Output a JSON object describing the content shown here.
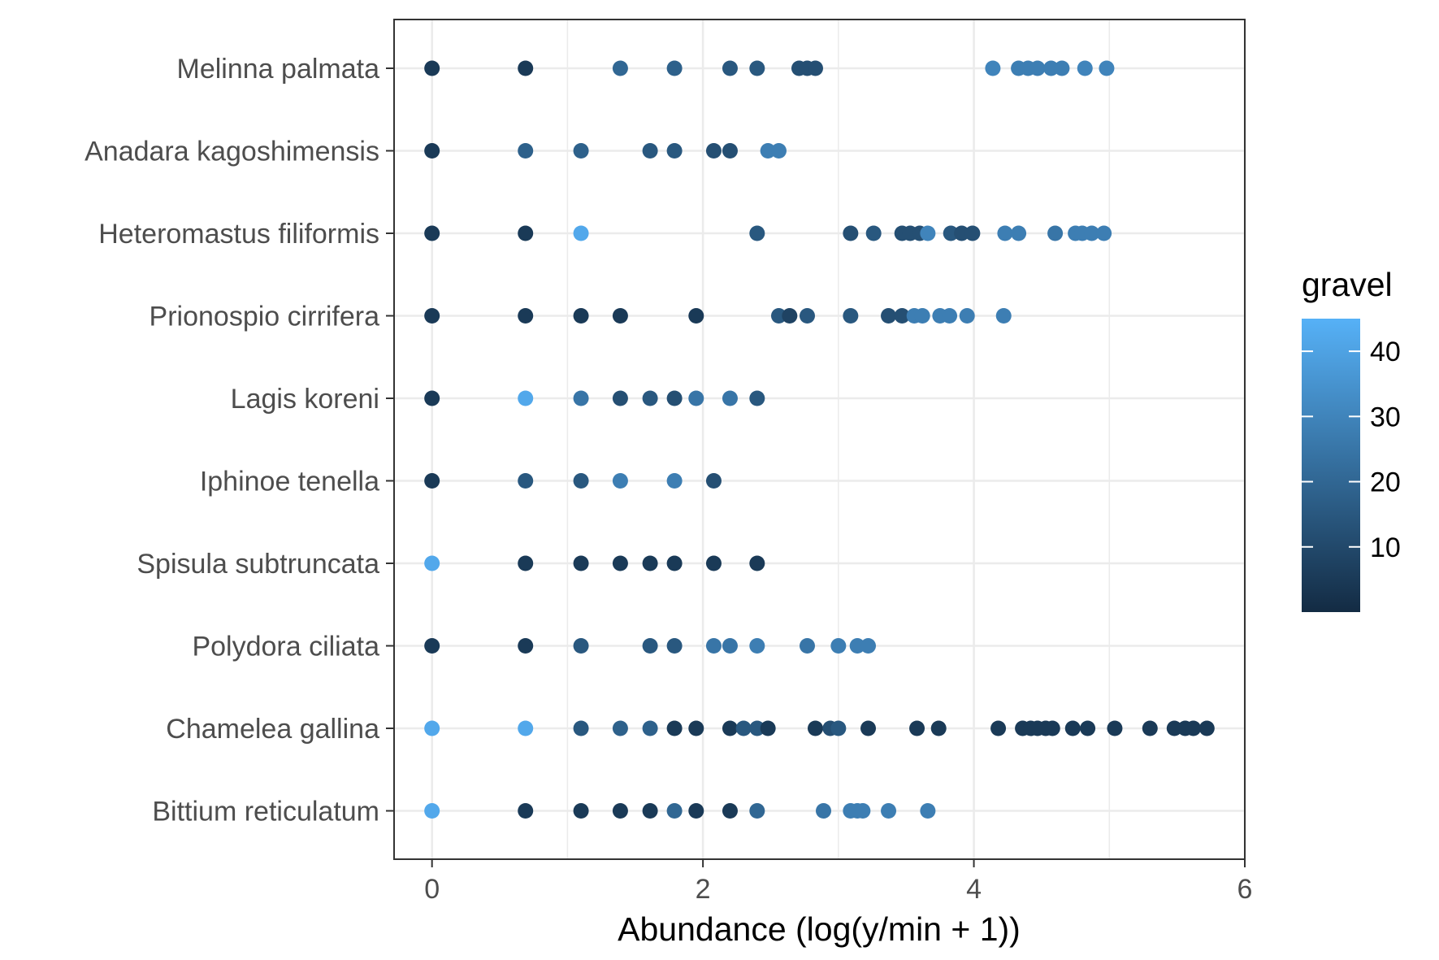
{
  "chart_data": {
    "type": "scatter",
    "title": "",
    "xlabel": "Abundance (log(y/min + 1))",
    "ylabel": "",
    "xlim": [
      -0.28,
      6
    ],
    "x_ticks": [
      "0",
      "2",
      "4",
      "6"
    ],
    "grid": true,
    "legend": {
      "title": "gravel",
      "position": "right",
      "type": "colorbar",
      "range": [
        0,
        45
      ],
      "ticks": [
        "10",
        "20",
        "30",
        "40"
      ],
      "low_color": "#132B43",
      "high_color": "#56B1F7"
    },
    "categories": [
      "Melinna palmata",
      "Anadara kagoshimensis",
      "Heteromastus filiformis",
      "Prionospio cirrifera",
      "Lagis koreni",
      "Iphinoe tenella",
      "Spisula subtruncata",
      "Polydora ciliata",
      "Chamelea gallina",
      "Bittium reticulatum"
    ],
    "points": {
      "Melinna palmata": [
        [
          0,
          5
        ],
        [
          0.69,
          5
        ],
        [
          1.39,
          20
        ],
        [
          1.79,
          18
        ],
        [
          2.2,
          15
        ],
        [
          2.4,
          15
        ],
        [
          2.71,
          12
        ],
        [
          2.77,
          12
        ],
        [
          2.83,
          12
        ],
        [
          4.14,
          30
        ],
        [
          4.33,
          28
        ],
        [
          4.4,
          28
        ],
        [
          4.47,
          28
        ],
        [
          4.57,
          28
        ],
        [
          4.65,
          28
        ],
        [
          4.82,
          30
        ],
        [
          4.98,
          30
        ]
      ],
      "Anadara kagoshimensis": [
        [
          0,
          5
        ],
        [
          0.69,
          18
        ],
        [
          1.1,
          18
        ],
        [
          1.61,
          15
        ],
        [
          1.79,
          15
        ],
        [
          2.08,
          12
        ],
        [
          2.2,
          12
        ],
        [
          2.48,
          28
        ],
        [
          2.56,
          28
        ]
      ],
      "Heteromastus filiformis": [
        [
          0,
          5
        ],
        [
          0.69,
          5
        ],
        [
          1.1,
          42
        ],
        [
          2.4,
          15
        ],
        [
          3.09,
          12
        ],
        [
          3.26,
          15
        ],
        [
          3.47,
          12
        ],
        [
          3.53,
          12
        ],
        [
          3.6,
          12
        ],
        [
          3.66,
          30
        ],
        [
          3.83,
          15
        ],
        [
          3.91,
          12
        ],
        [
          3.99,
          12
        ],
        [
          4.23,
          28
        ],
        [
          4.33,
          28
        ],
        [
          4.6,
          25
        ],
        [
          4.75,
          28
        ],
        [
          4.8,
          28
        ],
        [
          4.87,
          28
        ],
        [
          4.96,
          28
        ]
      ],
      "Prionospio cirrifera": [
        [
          0,
          5
        ],
        [
          0.69,
          5
        ],
        [
          1.1,
          5
        ],
        [
          1.39,
          5
        ],
        [
          1.95,
          5
        ],
        [
          2.56,
          15
        ],
        [
          2.64,
          8
        ],
        [
          2.77,
          15
        ],
        [
          3.09,
          15
        ],
        [
          3.37,
          12
        ],
        [
          3.47,
          12
        ],
        [
          3.56,
          28
        ],
        [
          3.62,
          28
        ],
        [
          3.75,
          28
        ],
        [
          3.82,
          28
        ],
        [
          3.95,
          28
        ],
        [
          4.22,
          28
        ]
      ],
      "Lagis koreni": [
        [
          0,
          5
        ],
        [
          0.69,
          42
        ],
        [
          1.1,
          25
        ],
        [
          1.39,
          12
        ],
        [
          1.61,
          15
        ],
        [
          1.79,
          12
        ],
        [
          1.95,
          25
        ],
        [
          2.2,
          25
        ],
        [
          2.4,
          15
        ]
      ],
      "Iphinoe tenella": [
        [
          0,
          5
        ],
        [
          0.69,
          15
        ],
        [
          1.1,
          15
        ],
        [
          1.39,
          28
        ],
        [
          1.79,
          28
        ],
        [
          2.08,
          12
        ]
      ],
      "Spisula subtruncata": [
        [
          0,
          42
        ],
        [
          0.69,
          5
        ],
        [
          1.1,
          5
        ],
        [
          1.39,
          5
        ],
        [
          1.61,
          5
        ],
        [
          1.79,
          5
        ],
        [
          2.08,
          5
        ],
        [
          2.4,
          5
        ]
      ],
      "Polydora ciliata": [
        [
          0,
          5
        ],
        [
          0.69,
          5
        ],
        [
          1.1,
          15
        ],
        [
          1.61,
          15
        ],
        [
          1.79,
          15
        ],
        [
          2.08,
          25
        ],
        [
          2.2,
          25
        ],
        [
          2.4,
          28
        ],
        [
          2.77,
          25
        ],
        [
          3,
          28
        ],
        [
          3.14,
          28
        ],
        [
          3.22,
          28
        ]
      ],
      "Chamelea gallina": [
        [
          0,
          42
        ],
        [
          0.69,
          42
        ],
        [
          1.1,
          15
        ],
        [
          1.39,
          18
        ],
        [
          1.61,
          18
        ],
        [
          1.79,
          5
        ],
        [
          1.95,
          5
        ],
        [
          2.2,
          5
        ],
        [
          2.3,
          15
        ],
        [
          2.4,
          15
        ],
        [
          2.48,
          5
        ],
        [
          2.83,
          5
        ],
        [
          2.94,
          12
        ],
        [
          3.0,
          15
        ],
        [
          3.22,
          5
        ],
        [
          3.58,
          5
        ],
        [
          3.74,
          5
        ],
        [
          4.18,
          5
        ],
        [
          4.36,
          5
        ],
        [
          4.42,
          5
        ],
        [
          4.47,
          5
        ],
        [
          4.53,
          5
        ],
        [
          4.58,
          5
        ],
        [
          4.73,
          5
        ],
        [
          4.84,
          5
        ],
        [
          5.04,
          5
        ],
        [
          5.3,
          5
        ],
        [
          5.48,
          5
        ],
        [
          5.56,
          5
        ],
        [
          5.62,
          5
        ],
        [
          5.72,
          5
        ]
      ],
      "Bittium reticulatum": [
        [
          0,
          42
        ],
        [
          0.69,
          5
        ],
        [
          1.1,
          5
        ],
        [
          1.39,
          5
        ],
        [
          1.61,
          5
        ],
        [
          1.79,
          20
        ],
        [
          1.95,
          5
        ],
        [
          2.2,
          5
        ],
        [
          2.4,
          20
        ],
        [
          2.89,
          25
        ],
        [
          3.09,
          28
        ],
        [
          3.14,
          28
        ],
        [
          3.18,
          28
        ],
        [
          3.37,
          28
        ],
        [
          3.66,
          28
        ]
      ]
    }
  }
}
